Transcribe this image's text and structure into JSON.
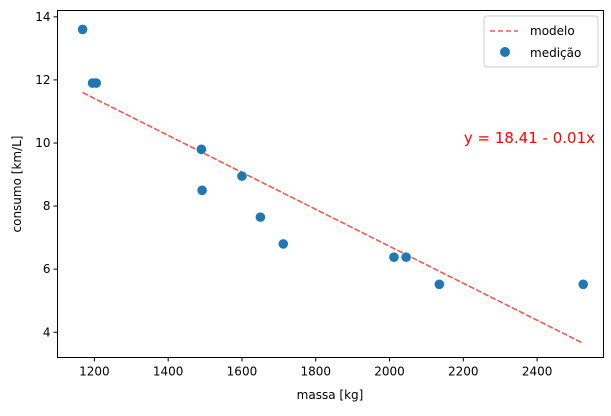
{
  "chart_data": {
    "type": "scatter",
    "title": "",
    "xlabel": "massa [kg]",
    "ylabel": "consumo [km/L]",
    "xlim": [
      1100,
      2580
    ],
    "ylim": [
      3.2,
      14.2
    ],
    "xticks": [
      1200,
      1400,
      1600,
      1800,
      2000,
      2200,
      2400
    ],
    "yticks": [
      4,
      6,
      8,
      10,
      12,
      14
    ],
    "grid": false,
    "legend_position": "top-right",
    "series": [
      {
        "name": "modelo",
        "kind": "line",
        "style": "dashed",
        "color": "#f05a50",
        "x": [
          1168,
          2525
        ],
        "y": [
          11.6,
          3.65
        ]
      },
      {
        "name": "medição",
        "kind": "scatter",
        "color": "#1f77b4",
        "x": [
          1168,
          1195,
          1205,
          1490,
          1492,
          1600,
          1650,
          1712,
          2012,
          2045,
          2135,
          2525
        ],
        "y": [
          13.6,
          11.9,
          11.9,
          9.8,
          8.5,
          8.95,
          7.65,
          6.8,
          6.38,
          6.38,
          5.52,
          5.52
        ]
      }
    ],
    "annotation": {
      "text": "y = 18.41 - 0.01x",
      "color": "#ff0000"
    }
  }
}
